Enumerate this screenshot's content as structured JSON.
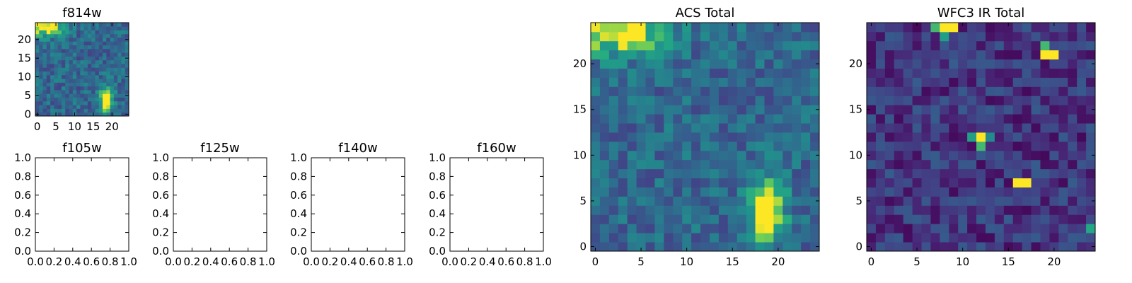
{
  "chart_data": [
    {
      "type": "heatmap",
      "title": "f814w",
      "xticks": [
        0,
        5,
        10,
        15,
        20
      ],
      "yticks": [
        0,
        5,
        10,
        15,
        20
      ],
      "xlim": [
        -0.5,
        24.5
      ],
      "ylim": [
        -0.5,
        24.5
      ],
      "grid_size": [
        25,
        25
      ],
      "colormap": "viridis",
      "features": [
        {
          "shape": "blob",
          "x": 18.5,
          "y": 4,
          "sx": 1.2,
          "sy": 2.2,
          "amp": 0.85
        },
        {
          "shape": "blob",
          "x": 2,
          "y": 23.5,
          "sx": 3.5,
          "sy": 1.8,
          "amp": 0.65
        }
      ],
      "noise_seed": 11,
      "base_level": 0.42
    },
    {
      "type": "heatmap",
      "title": "ACS Total",
      "xticks": [
        0,
        5,
        10,
        15,
        20
      ],
      "yticks": [
        0,
        5,
        10,
        15,
        20
      ],
      "xlim": [
        -0.5,
        24.5
      ],
      "ylim": [
        -0.5,
        24.5
      ],
      "grid_size": [
        25,
        25
      ],
      "colormap": "viridis",
      "features": [
        {
          "shape": "blob",
          "x": 18.8,
          "y": 4,
          "sx": 1.3,
          "sy": 2.3,
          "amp": 0.85
        },
        {
          "shape": "blob",
          "x": 2.5,
          "y": 23.5,
          "sx": 3.8,
          "sy": 1.8,
          "amp": 0.6
        }
      ],
      "noise_seed": 11,
      "base_level": 0.42
    },
    {
      "type": "heatmap",
      "title": "WFC3 IR Total",
      "xticks": [
        0,
        5,
        10,
        15,
        20
      ],
      "yticks": [
        0,
        5,
        10,
        15,
        20
      ],
      "xlim": [
        -0.5,
        24.5
      ],
      "ylim": [
        -0.5,
        24.5
      ],
      "grid_size": [
        25,
        25
      ],
      "colormap": "viridis",
      "features": [
        {
          "shape": "pixel",
          "x": 8,
          "y": 24,
          "value": 1.0
        },
        {
          "shape": "pixel",
          "x": 9,
          "y": 24,
          "value": 1.0
        },
        {
          "shape": "pixel",
          "x": 7,
          "y": 24,
          "value": 0.8
        },
        {
          "shape": "pixel",
          "x": 8,
          "y": 23,
          "value": 0.7
        },
        {
          "shape": "pixel",
          "x": 19,
          "y": 21,
          "value": 1.0
        },
        {
          "shape": "pixel",
          "x": 20,
          "y": 21,
          "value": 1.0
        },
        {
          "shape": "pixel",
          "x": 19,
          "y": 22,
          "value": 0.8
        },
        {
          "shape": "pixel",
          "x": 12,
          "y": 12,
          "value": 1.0
        },
        {
          "shape": "pixel",
          "x": 12,
          "y": 11,
          "value": 0.8
        },
        {
          "shape": "pixel",
          "x": 11,
          "y": 12,
          "value": 0.7
        },
        {
          "shape": "pixel",
          "x": 13,
          "y": 12,
          "value": 0.6
        },
        {
          "shape": "pixel",
          "x": 16,
          "y": 7,
          "value": 1.0
        },
        {
          "shape": "pixel",
          "x": 17,
          "y": 7,
          "value": 1.0
        },
        {
          "shape": "pixel",
          "x": 24,
          "y": 2,
          "value": 0.75
        }
      ],
      "noise_seed": 29,
      "base_level": 0.2
    },
    {
      "type": "empty",
      "title": "f105w",
      "xticks": [
        "0.0",
        "0.2",
        "0.4",
        "0.6",
        "0.8",
        "1.0"
      ],
      "yticks": [
        "0.0",
        "0.2",
        "0.4",
        "0.6",
        "0.8",
        "1.0"
      ],
      "xlim": [
        0,
        1
      ],
      "ylim": [
        0,
        1
      ]
    },
    {
      "type": "empty",
      "title": "f125w",
      "xticks": [
        "0.0",
        "0.2",
        "0.4",
        "0.6",
        "0.8",
        "1.0"
      ],
      "yticks": [
        "0.0",
        "0.2",
        "0.4",
        "0.6",
        "0.8",
        "1.0"
      ],
      "xlim": [
        0,
        1
      ],
      "ylim": [
        0,
        1
      ]
    },
    {
      "type": "empty",
      "title": "f140w",
      "xticks": [
        "0.0",
        "0.2",
        "0.4",
        "0.6",
        "0.8",
        "1.0"
      ],
      "yticks": [
        "0.0",
        "0.2",
        "0.4",
        "0.6",
        "0.8",
        "1.0"
      ],
      "xlim": [
        0,
        1
      ],
      "ylim": [
        0,
        1
      ]
    },
    {
      "type": "empty",
      "title": "f160w",
      "xticks": [
        "0.0",
        "0.2",
        "0.4",
        "0.6",
        "0.8",
        "1.0"
      ],
      "yticks": [
        "0.0",
        "0.2",
        "0.4",
        "0.6",
        "0.8",
        "1.0"
      ],
      "xlim": [
        0,
        1
      ],
      "ylim": [
        0,
        1
      ]
    }
  ]
}
